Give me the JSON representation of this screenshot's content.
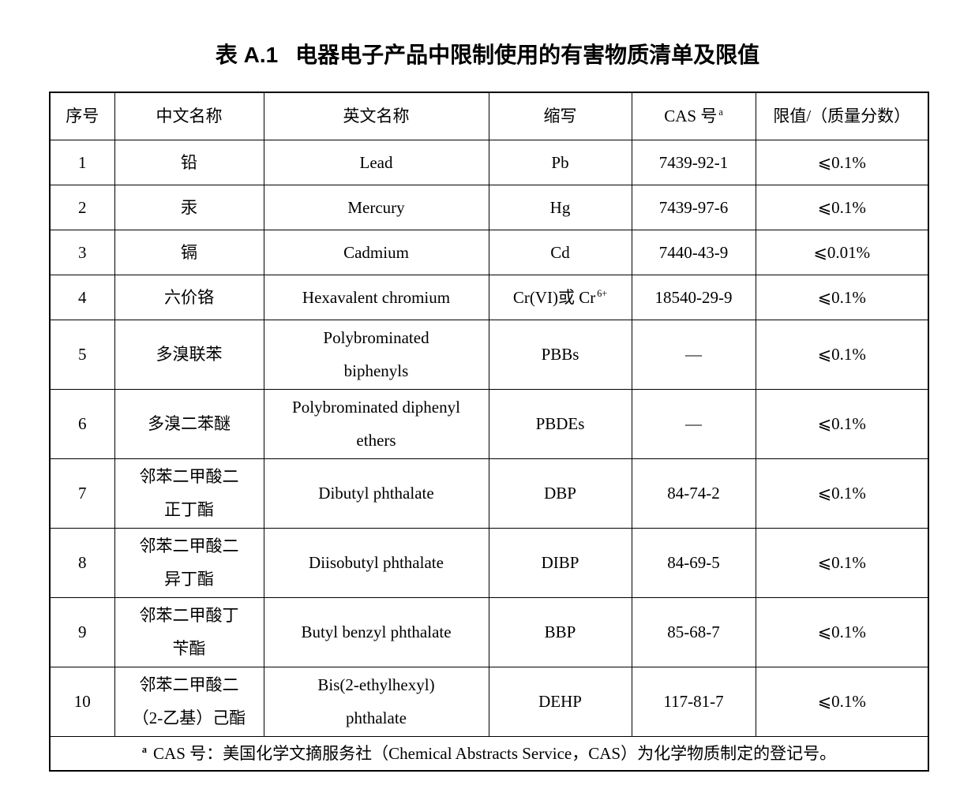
{
  "page": {
    "title_prefix": "表 A.1",
    "title": "电器电子产品中限制使用的有害物质清单及限值",
    "background_color": "#ffffff",
    "text_color": "#000000",
    "border_color": "#000000"
  },
  "table": {
    "headers": [
      {
        "label": "序号"
      },
      {
        "label": "中文名称"
      },
      {
        "label": "英文名称"
      },
      {
        "label": "缩写"
      },
      {
        "label": "CAS 号",
        "sup": "a"
      },
      {
        "label": "限值/（质量分数）"
      }
    ],
    "rows": [
      {
        "no": "1",
        "cn": [
          "铅"
        ],
        "en": [
          "Lead"
        ],
        "abbr": "Pb",
        "cas": "7439-92-1",
        "limit": "⩽0.1%"
      },
      {
        "no": "2",
        "cn": [
          "汞"
        ],
        "en": [
          "Mercury"
        ],
        "abbr": "Hg",
        "cas": "7439-97-6",
        "limit": "⩽0.1%"
      },
      {
        "no": "3",
        "cn": [
          "镉"
        ],
        "en": [
          "Cadmium"
        ],
        "abbr": "Cd",
        "cas": "7440-43-9",
        "limit": "⩽0.01%"
      },
      {
        "no": "4",
        "cn": [
          "六价铬"
        ],
        "en": [
          "Hexavalent chromium"
        ],
        "abbr": "Cr(VI)或 Cr",
        "abbr_sup": "6+",
        "cas": "18540-29-9",
        "limit": "⩽0.1%"
      },
      {
        "no": "5",
        "cn": [
          "多溴联苯"
        ],
        "en": [
          "Polybrominated",
          "biphenyls"
        ],
        "abbr": "PBBs",
        "cas": "—",
        "limit": "⩽0.1%"
      },
      {
        "no": "6",
        "cn": [
          "多溴二苯醚"
        ],
        "en": [
          "Polybrominated diphenyl",
          "ethers"
        ],
        "abbr": "PBDEs",
        "cas": "—",
        "limit": "⩽0.1%"
      },
      {
        "no": "7",
        "cn": [
          "邻苯二甲酸二",
          "正丁酯"
        ],
        "en": [
          "Dibutyl phthalate"
        ],
        "abbr": "DBP",
        "cas": "84-74-2",
        "limit": "⩽0.1%"
      },
      {
        "no": "8",
        "cn": [
          "邻苯二甲酸二",
          "异丁酯"
        ],
        "en": [
          "Diisobutyl phthalate"
        ],
        "abbr": "DIBP",
        "cas": "84-69-5",
        "limit": "⩽0.1%"
      },
      {
        "no": "9",
        "cn": [
          "邻苯二甲酸丁",
          "苄酯"
        ],
        "en": [
          "Butyl benzyl phthalate"
        ],
        "abbr": "BBP",
        "cas": "85-68-7",
        "limit": "⩽0.1%"
      },
      {
        "no": "10",
        "cn": [
          "邻苯二甲酸二",
          "（2-乙基）己酯"
        ],
        "en": [
          "Bis(2-ethylhexyl)",
          "phthalate"
        ],
        "abbr": "DEHP",
        "cas": "117-81-7",
        "limit": "⩽0.1%"
      }
    ],
    "footnote": {
      "sup": "a",
      "text": "CAS 号：美国化学文摘服务社（Chemical Abstracts Service，CAS）为化学物质制定的登记号。"
    }
  }
}
